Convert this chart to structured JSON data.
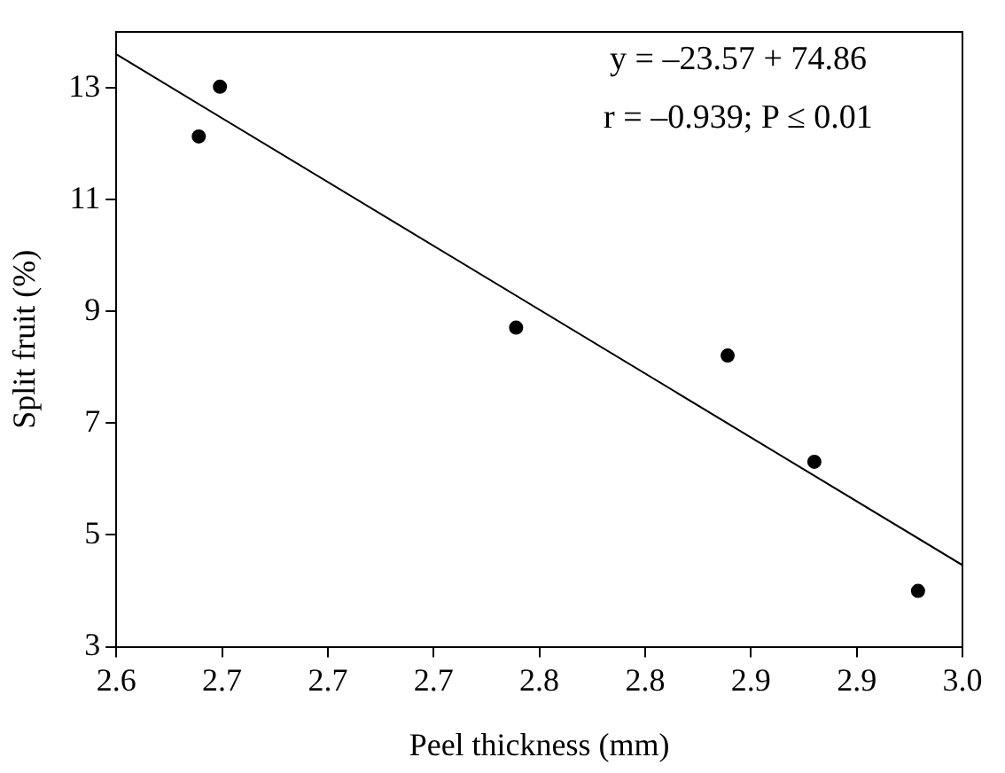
{
  "chart_data": {
    "type": "scatter",
    "xlabel": "Peel thickness (mm)",
    "ylabel": "Split fruit (%)",
    "xlim": [
      2.6,
      3.0
    ],
    "xticks": [
      2.6,
      {
        "value": 2.65,
        "label": "2.7"
      },
      2.7,
      {
        "value": 2.75,
        "label": "2.7"
      },
      2.8,
      {
        "value": 2.85,
        "label": "2.8"
      },
      2.9,
      {
        "value": 2.95,
        "label": "2.9"
      },
      {
        "value": 3.0,
        "label": "3.0"
      }
    ],
    "ylim": [
      3,
      14
    ],
    "yticks": [
      3,
      5,
      7,
      9,
      11,
      13
    ],
    "grid": false,
    "legend": false,
    "annotations": [
      "y = –23.57 + 74.86",
      "r = –0.939; P ≤ 0.01"
    ],
    "series": [
      {
        "color": "#000000",
        "marker": "circle",
        "x": [
          2.639,
          2.649,
          2.789,
          2.889,
          2.93,
          2.979
        ],
        "values": [
          12.13,
          13.02,
          8.71,
          8.21,
          6.31,
          4.0
        ]
      },
      {
        "type": "line",
        "color": "#000000",
        "x": [
          2.6,
          3.0
        ],
        "values": [
          13.6,
          4.46
        ]
      }
    ]
  }
}
